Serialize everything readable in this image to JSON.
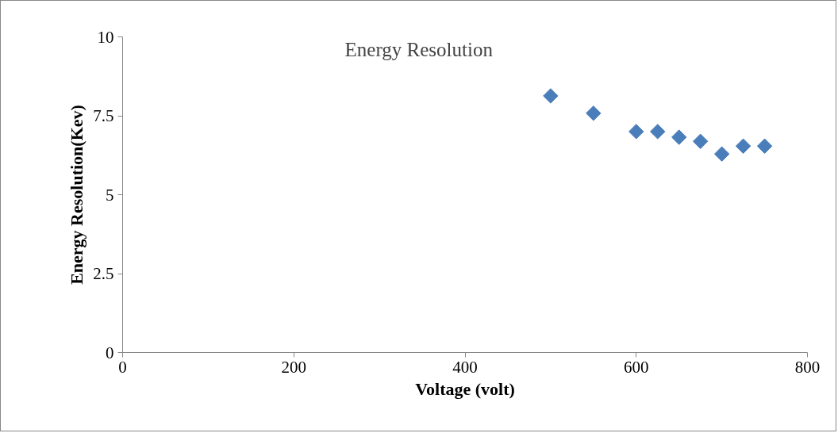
{
  "chart_data": {
    "type": "scatter",
    "title": "Energy Resolution",
    "xlabel": "Voltage (volt)",
    "ylabel": "Energy Resolution(Kev)",
    "x": [
      500,
      550,
      600,
      625,
      650,
      675,
      700,
      725,
      750
    ],
    "series": [
      {
        "color": "#4a7ebb",
        "values": [
          8.13,
          7.58,
          7.0,
          7.0,
          6.82,
          6.69,
          6.29,
          6.54,
          6.54
        ]
      }
    ],
    "xlim": [
      0,
      800
    ],
    "xticks": [
      0,
      200,
      400,
      600,
      800
    ],
    "ylim": [
      0,
      10
    ],
    "yticks": [
      0,
      {
        "value": 2.5,
        "label": "2.5"
      },
      5,
      {
        "value": 7.5,
        "label": "7.5"
      },
      10
    ],
    "grid": false,
    "marker": "diamond"
  }
}
